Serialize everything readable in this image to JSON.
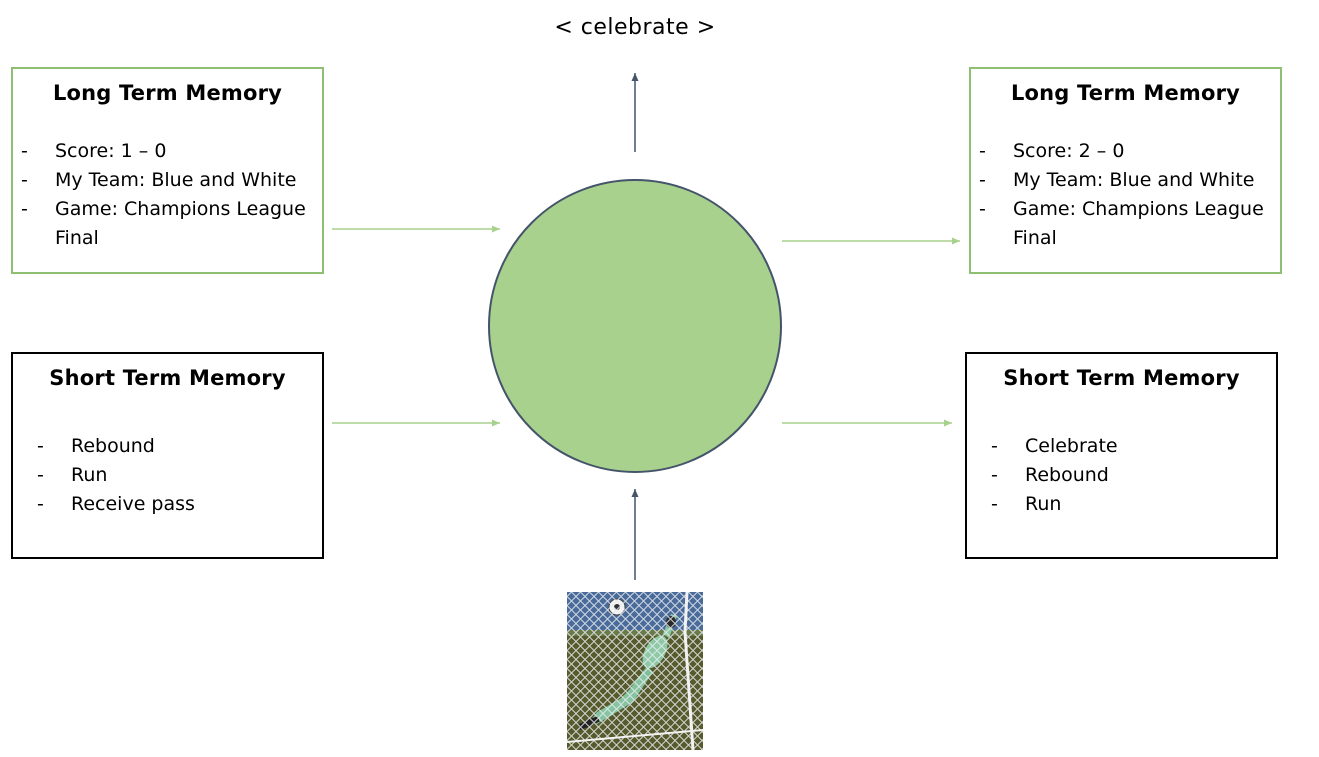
{
  "output": {
    "label": "< celebrate >"
  },
  "left": {
    "long_term": {
      "title": "Long Term Memory",
      "items": [
        "Score: 1 – 0",
        "My Team: Blue and White",
        "Game: Champions League Final"
      ]
    },
    "short_term": {
      "title": "Short Term Memory",
      "items": [
        "Rebound",
        "Run",
        "Receive pass"
      ]
    }
  },
  "right": {
    "long_term": {
      "title": "Long Term Memory",
      "items": [
        "Score: 2 – 0",
        "My Team: Blue and White",
        "Game: Champions League Final"
      ]
    },
    "short_term": {
      "title": "Short Term Memory",
      "items": [
        "Celebrate",
        "Rebound",
        "Run"
      ]
    }
  },
  "input": {
    "icon": "goalkeeper-photo-icon"
  },
  "colors": {
    "node_fill": "#a9d18e",
    "node_stroke": "#44546a",
    "long_term_border": "#8fbf72",
    "short_term_border": "#000000",
    "memory_arrow": "#a9d18e",
    "io_arrow": "#44546a"
  }
}
